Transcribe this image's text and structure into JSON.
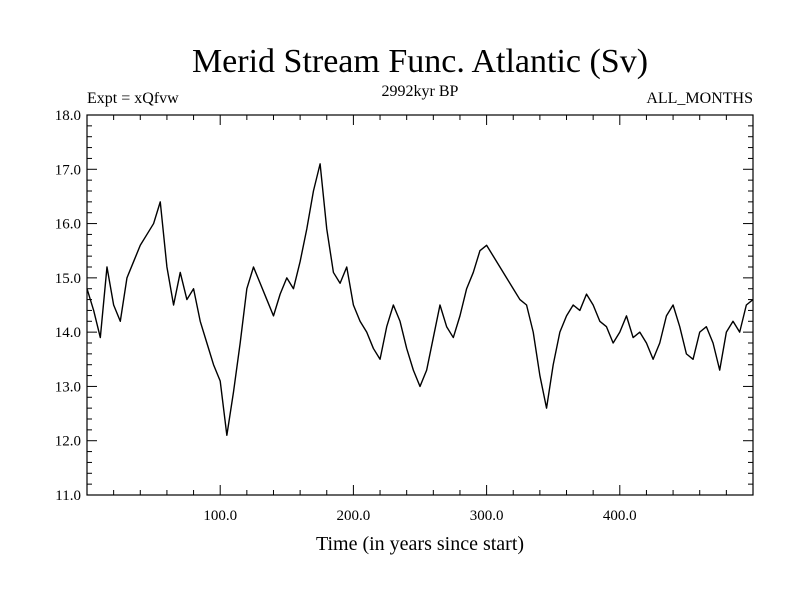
{
  "chart_data": {
    "type": "line",
    "title": "Merid Stream Func. Atlantic (Sv)",
    "subtitle_left": "Expt = xQfvw",
    "subtitle_center": "2992kyr BP",
    "subtitle_right": "ALL_MONTHS",
    "xlabel": "Time (in years since start)",
    "ylabel": "",
    "xlim": [
      0,
      500
    ],
    "ylim": [
      11.0,
      18.0
    ],
    "x_ticks": [
      100,
      200,
      300,
      400
    ],
    "x_tick_labels": [
      "100.0",
      "200.0",
      "300.0",
      "400.0"
    ],
    "y_ticks": [
      11,
      12,
      13,
      14,
      15,
      16,
      17,
      18
    ],
    "y_tick_labels": [
      "11.0",
      "12.0",
      "13.0",
      "14.0",
      "15.0",
      "16.0",
      "17.0",
      "18.0"
    ],
    "grid": false,
    "series": [
      {
        "name": "Merid Stream Func. Atlantic",
        "color": "#000000",
        "x": [
          0,
          5,
          10,
          15,
          20,
          25,
          30,
          35,
          40,
          45,
          50,
          55,
          60,
          65,
          70,
          75,
          80,
          85,
          90,
          95,
          100,
          105,
          110,
          115,
          120,
          125,
          130,
          135,
          140,
          145,
          150,
          155,
          160,
          165,
          170,
          175,
          180,
          185,
          190,
          195,
          200,
          205,
          210,
          215,
          220,
          225,
          230,
          235,
          240,
          245,
          250,
          255,
          260,
          265,
          270,
          275,
          280,
          285,
          290,
          295,
          300,
          305,
          310,
          315,
          320,
          325,
          330,
          335,
          340,
          345,
          350,
          355,
          360,
          365,
          370,
          375,
          380,
          385,
          390,
          395,
          400,
          405,
          410,
          415,
          420,
          425,
          430,
          435,
          440,
          445,
          450,
          455,
          460,
          465,
          470,
          475,
          480,
          485,
          490,
          495,
          500
        ],
        "values": [
          14.8,
          14.4,
          13.9,
          15.2,
          14.5,
          14.2,
          15.0,
          15.3,
          15.6,
          15.8,
          16.0,
          16.4,
          15.2,
          14.5,
          15.1,
          14.6,
          14.8,
          14.2,
          13.8,
          13.4,
          13.1,
          12.1,
          12.9,
          13.8,
          14.8,
          15.2,
          14.9,
          14.6,
          14.3,
          14.7,
          15.0,
          14.8,
          15.3,
          15.9,
          16.6,
          17.1,
          15.9,
          15.1,
          14.9,
          15.2,
          14.5,
          14.2,
          14.0,
          13.7,
          13.5,
          14.1,
          14.5,
          14.2,
          13.7,
          13.3,
          13.0,
          13.3,
          13.9,
          14.5,
          14.1,
          13.9,
          14.3,
          14.8,
          15.1,
          15.5,
          15.6,
          15.4,
          15.2,
          15.0,
          14.8,
          14.6,
          14.5,
          14.0,
          13.2,
          12.6,
          13.4,
          14.0,
          14.3,
          14.5,
          14.4,
          14.7,
          14.5,
          14.2,
          14.1,
          13.8,
          14.0,
          14.3,
          13.9,
          14.0,
          13.8,
          13.5,
          13.8,
          14.3,
          14.5,
          14.1,
          13.6,
          13.5,
          14.0,
          14.1,
          13.8,
          13.3,
          14.0,
          14.2,
          14.0,
          14.5,
          14.6
        ]
      }
    ]
  }
}
